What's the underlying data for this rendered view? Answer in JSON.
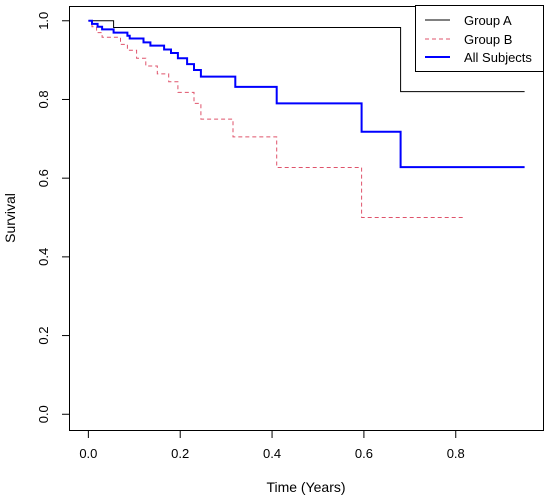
{
  "chart_data": {
    "type": "line",
    "subtype": "step",
    "title": "",
    "xlabel": "Time (Years)",
    "ylabel": "Survival",
    "xlim": [
      -0.04,
      0.99
    ],
    "ylim": [
      -0.04,
      1.035
    ],
    "xticks": [
      0.0,
      0.2,
      0.4,
      0.6,
      0.8
    ],
    "xtick_labels": [
      "0.0",
      "0.2",
      "0.4",
      "0.6",
      "0.8"
    ],
    "yticks": [
      0.0,
      0.2,
      0.4,
      0.6,
      0.8,
      1.0
    ],
    "ytick_labels": [
      "0.0",
      "0.2",
      "0.4",
      "0.6",
      "0.8",
      "1.0"
    ],
    "grid": false,
    "legend_position": "top-right",
    "series": [
      {
        "name": "Group A",
        "color": "#000000",
        "line_style": "solid",
        "line_width": 1,
        "points": [
          [
            0.0,
            1.0
          ],
          [
            0.055,
            1.0
          ],
          [
            0.055,
            0.983
          ],
          [
            0.68,
            0.983
          ],
          [
            0.68,
            0.82
          ],
          [
            0.95,
            0.82
          ]
        ]
      },
      {
        "name": "Group B",
        "color": "#df536b",
        "line_style": "dashed",
        "line_width": 1,
        "points": [
          [
            0.0,
            1.0
          ],
          [
            0.008,
            1.0
          ],
          [
            0.008,
            0.985
          ],
          [
            0.018,
            0.985
          ],
          [
            0.018,
            0.97
          ],
          [
            0.03,
            0.97
          ],
          [
            0.03,
            0.958
          ],
          [
            0.07,
            0.958
          ],
          [
            0.07,
            0.94
          ],
          [
            0.085,
            0.94
          ],
          [
            0.085,
            0.925
          ],
          [
            0.105,
            0.925
          ],
          [
            0.105,
            0.905
          ],
          [
            0.125,
            0.905
          ],
          [
            0.125,
            0.885
          ],
          [
            0.15,
            0.885
          ],
          [
            0.15,
            0.865
          ],
          [
            0.175,
            0.865
          ],
          [
            0.175,
            0.845
          ],
          [
            0.195,
            0.845
          ],
          [
            0.195,
            0.818
          ],
          [
            0.23,
            0.818
          ],
          [
            0.23,
            0.79
          ],
          [
            0.245,
            0.79
          ],
          [
            0.245,
            0.75
          ],
          [
            0.315,
            0.75
          ],
          [
            0.315,
            0.705
          ],
          [
            0.41,
            0.705
          ],
          [
            0.41,
            0.627
          ],
          [
            0.595,
            0.627
          ],
          [
            0.595,
            0.5
          ],
          [
            0.82,
            0.5
          ]
        ]
      },
      {
        "name": "All Subjects",
        "color": "#0000ff",
        "line_style": "solid",
        "line_width": 2,
        "points": [
          [
            0.0,
            1.0
          ],
          [
            0.008,
            1.0
          ],
          [
            0.008,
            0.992
          ],
          [
            0.02,
            0.992
          ],
          [
            0.02,
            0.985
          ],
          [
            0.03,
            0.985
          ],
          [
            0.03,
            0.978
          ],
          [
            0.055,
            0.978
          ],
          [
            0.055,
            0.97
          ],
          [
            0.085,
            0.97
          ],
          [
            0.085,
            0.962
          ],
          [
            0.09,
            0.962
          ],
          [
            0.09,
            0.955
          ],
          [
            0.12,
            0.955
          ],
          [
            0.12,
            0.945
          ],
          [
            0.135,
            0.945
          ],
          [
            0.135,
            0.937
          ],
          [
            0.165,
            0.937
          ],
          [
            0.165,
            0.927
          ],
          [
            0.18,
            0.927
          ],
          [
            0.18,
            0.918
          ],
          [
            0.195,
            0.918
          ],
          [
            0.195,
            0.905
          ],
          [
            0.215,
            0.905
          ],
          [
            0.215,
            0.89
          ],
          [
            0.23,
            0.89
          ],
          [
            0.23,
            0.875
          ],
          [
            0.245,
            0.875
          ],
          [
            0.245,
            0.858
          ],
          [
            0.32,
            0.858
          ],
          [
            0.32,
            0.832
          ],
          [
            0.41,
            0.832
          ],
          [
            0.41,
            0.79
          ],
          [
            0.595,
            0.79
          ],
          [
            0.595,
            0.718
          ],
          [
            0.68,
            0.718
          ],
          [
            0.68,
            0.628
          ],
          [
            0.95,
            0.628
          ]
        ]
      }
    ]
  }
}
